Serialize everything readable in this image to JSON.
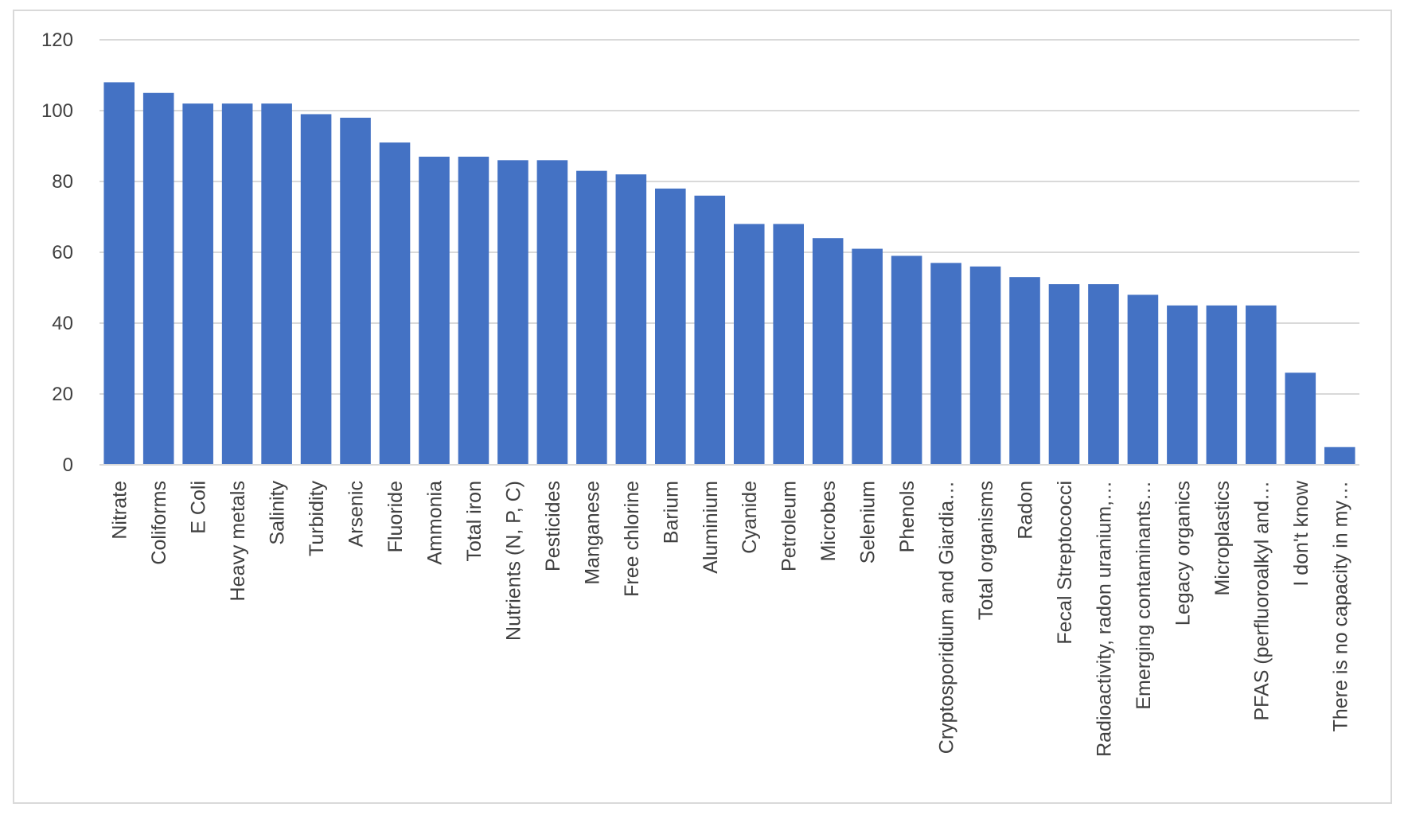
{
  "chart_data": {
    "type": "bar",
    "title": "",
    "xlabel": "",
    "ylabel": "",
    "ylim": [
      0,
      120
    ],
    "yticks": [
      0,
      20,
      40,
      60,
      80,
      100,
      120
    ],
    "grid": true,
    "legend": "none",
    "bar_color": "#4472C4",
    "grid_color": "#d9d9d9",
    "categories": [
      "Nitrate",
      "Coliforms",
      "E Coli",
      "Heavy metals",
      "Salinity",
      "Turbidity",
      "Arsenic",
      "Fluoride",
      "Ammonia",
      "Total iron",
      "Nutrients (N, P, C)",
      "Pesticides",
      "Manganese",
      "Free chlorine",
      "Barium",
      "Aluminium",
      "Cyanide",
      "Petroleum",
      "Microbes",
      "Selenium",
      "Phenols",
      "Cryptosporidium and Giardia…",
      "Total organisms",
      "Radon",
      "Fecal Streptococci",
      "Radioactivity, radon uranium,…",
      "Emerging contaminants…",
      "Legacy organics",
      "Microplastics",
      "PFAS (perfluoroalkyl and…",
      "I don't know",
      "There is no capacity in my…"
    ],
    "values": [
      108,
      105,
      102,
      102,
      102,
      99,
      98,
      91,
      87,
      87,
      86,
      86,
      83,
      82,
      78,
      76,
      68,
      68,
      64,
      61,
      59,
      57,
      56,
      53,
      51,
      51,
      48,
      45,
      45,
      45,
      26,
      5
    ]
  }
}
